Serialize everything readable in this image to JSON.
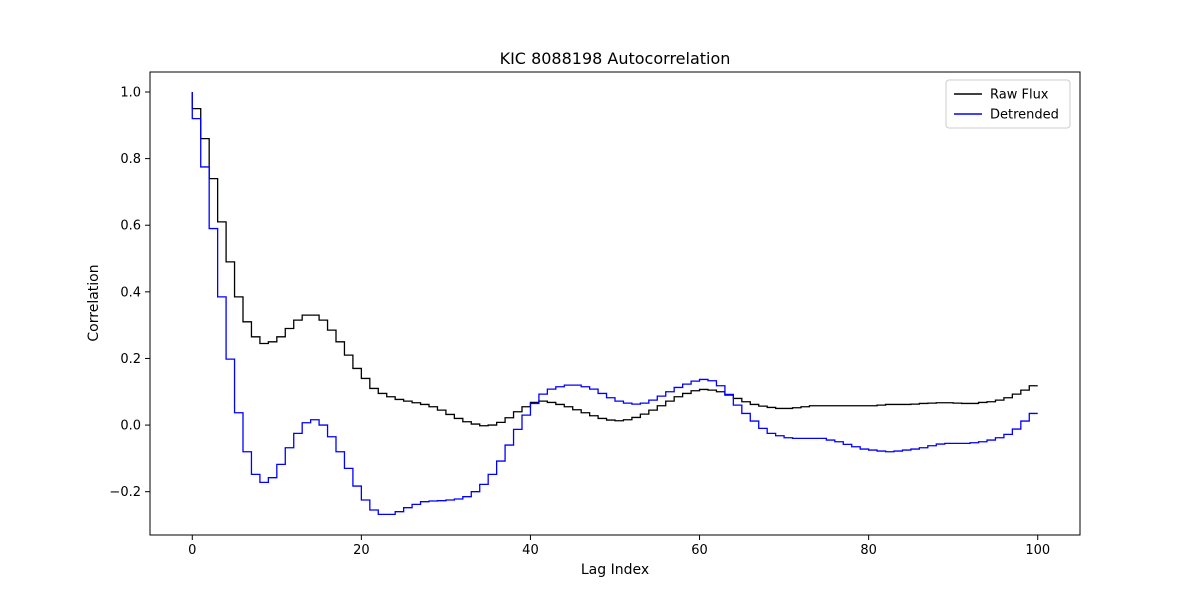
{
  "chart_data": {
    "type": "line",
    "drawstyle": "steps",
    "title": "KIC 8088198 Autocorrelation",
    "xlabel": "Lag Index",
    "ylabel": "Correlation",
    "xlim": [
      -5,
      105
    ],
    "ylim": [
      -0.33,
      1.06
    ],
    "xticks": [
      0,
      20,
      40,
      60,
      80,
      100
    ],
    "yticks": [
      -0.2,
      0.0,
      0.2,
      0.4,
      0.6,
      0.8,
      1.0
    ],
    "xtick_labels": [
      "0",
      "20",
      "40",
      "60",
      "80",
      "100"
    ],
    "ytick_labels": [
      "−0.2",
      "0.0",
      "0.2",
      "0.4",
      "0.6",
      "0.8",
      "1.0"
    ],
    "grid": false,
    "legend_position": "top-right",
    "x": [
      0,
      1,
      2,
      3,
      4,
      5,
      6,
      7,
      8,
      9,
      10,
      11,
      12,
      13,
      14,
      15,
      16,
      17,
      18,
      19,
      20,
      21,
      22,
      23,
      24,
      25,
      26,
      27,
      28,
      29,
      30,
      31,
      32,
      33,
      34,
      35,
      36,
      37,
      38,
      39,
      40,
      41,
      42,
      43,
      44,
      45,
      46,
      47,
      48,
      49,
      50,
      51,
      52,
      53,
      54,
      55,
      56,
      57,
      58,
      59,
      60,
      61,
      62,
      63,
      64,
      65,
      66,
      67,
      68,
      69,
      70,
      71,
      72,
      73,
      74,
      75,
      76,
      77,
      78,
      79,
      80,
      81,
      82,
      83,
      84,
      85,
      86,
      87,
      88,
      89,
      90,
      91,
      92,
      93,
      94,
      95,
      96,
      97,
      98,
      99,
      100
    ],
    "series": [
      {
        "name": "Raw Flux",
        "color": "#000000",
        "values": [
          1.0,
          0.95,
          0.86,
          0.74,
          0.61,
          0.49,
          0.385,
          0.31,
          0.265,
          0.245,
          0.25,
          0.265,
          0.29,
          0.315,
          0.33,
          0.33,
          0.315,
          0.285,
          0.25,
          0.21,
          0.17,
          0.14,
          0.11,
          0.095,
          0.085,
          0.077,
          0.072,
          0.067,
          0.062,
          0.055,
          0.045,
          0.032,
          0.02,
          0.01,
          0.003,
          -0.002,
          0.0,
          0.008,
          0.022,
          0.04,
          0.055,
          0.068,
          0.072,
          0.068,
          0.062,
          0.055,
          0.046,
          0.037,
          0.028,
          0.02,
          0.015,
          0.013,
          0.016,
          0.023,
          0.033,
          0.045,
          0.058,
          0.072,
          0.085,
          0.095,
          0.103,
          0.107,
          0.105,
          0.1,
          0.09,
          0.08,
          0.07,
          0.062,
          0.057,
          0.053,
          0.05,
          0.05,
          0.052,
          0.055,
          0.058,
          0.058,
          0.058,
          0.058,
          0.058,
          0.058,
          0.058,
          0.058,
          0.06,
          0.062,
          0.062,
          0.062,
          0.063,
          0.065,
          0.066,
          0.067,
          0.067,
          0.066,
          0.065,
          0.065,
          0.068,
          0.07,
          0.075,
          0.082,
          0.093,
          0.105,
          0.118
        ]
      },
      {
        "name": "Detrended",
        "color": "#0000ff",
        "values": [
          1.0,
          0.92,
          0.775,
          0.59,
          0.385,
          0.198,
          0.037,
          -0.08,
          -0.148,
          -0.172,
          -0.158,
          -0.118,
          -0.068,
          -0.025,
          0.007,
          0.016,
          0.0,
          -0.035,
          -0.08,
          -0.13,
          -0.183,
          -0.225,
          -0.255,
          -0.268,
          -0.268,
          -0.26,
          -0.248,
          -0.238,
          -0.23,
          -0.228,
          -0.227,
          -0.225,
          -0.222,
          -0.215,
          -0.2,
          -0.178,
          -0.148,
          -0.108,
          -0.06,
          -0.013,
          0.03,
          0.065,
          0.093,
          0.108,
          0.115,
          0.12,
          0.12,
          0.115,
          0.108,
          0.095,
          0.082,
          0.072,
          0.066,
          0.063,
          0.066,
          0.075,
          0.087,
          0.1,
          0.113,
          0.123,
          0.132,
          0.137,
          0.133,
          0.118,
          0.092,
          0.06,
          0.035,
          0.012,
          -0.01,
          -0.025,
          -0.032,
          -0.038,
          -0.04,
          -0.04,
          -0.04,
          -0.04,
          -0.045,
          -0.05,
          -0.058,
          -0.065,
          -0.072,
          -0.075,
          -0.078,
          -0.08,
          -0.078,
          -0.075,
          -0.072,
          -0.068,
          -0.062,
          -0.057,
          -0.055,
          -0.055,
          -0.055,
          -0.053,
          -0.05,
          -0.045,
          -0.038,
          -0.028,
          -0.012,
          0.012,
          0.035
        ]
      }
    ]
  }
}
